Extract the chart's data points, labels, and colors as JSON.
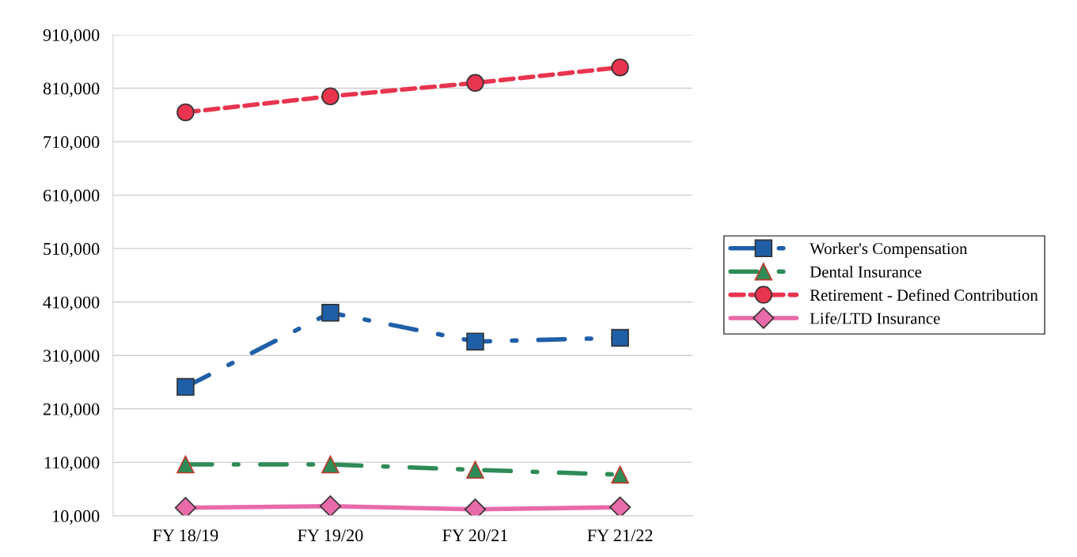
{
  "chart_data": {
    "type": "line",
    "categories": [
      "FY 18/19",
      "FY 19/20",
      "FY 20/21",
      "FY 21/22"
    ],
    "series": [
      {
        "name": "Worker's Compensation",
        "color": "#1f5fa8",
        "marker": "square",
        "line_style": "dashdot",
        "values": [
          251000,
          390000,
          336000,
          343000
        ]
      },
      {
        "name": "Dental Insurance",
        "color": "#2e8b57",
        "marker": "triangle",
        "line_style": "dashdot",
        "values": [
          106000,
          106000,
          96000,
          87000
        ]
      },
      {
        "name": "Retirement - Defined Contribution",
        "color": "#e8344e",
        "marker": "circle",
        "line_style": "dashed",
        "values": [
          765000,
          795000,
          820000,
          849000
        ]
      },
      {
        "name": "Life/LTD Insurance",
        "color": "#e86aa8",
        "marker": "diamond",
        "line_style": "solid",
        "values": [
          25000,
          28000,
          22000,
          26000
        ]
      }
    ],
    "ylim": [
      10000,
      910000
    ],
    "yticks": [
      {
        "value": 10000,
        "label": "10,000"
      },
      {
        "value": 110000,
        "label": "110,000"
      },
      {
        "value": 210000,
        "label": "210,000"
      },
      {
        "value": 310000,
        "label": "310,000"
      },
      {
        "value": 410000,
        "label": "410,000"
      },
      {
        "value": 510000,
        "label": "510,000"
      },
      {
        "value": 610000,
        "label": "610,000"
      },
      {
        "value": 710000,
        "label": "710,000"
      },
      {
        "value": 810000,
        "label": "810,000"
      },
      {
        "value": 910000,
        "label": "910,000"
      }
    ],
    "grid": "y",
    "legend": "right"
  }
}
